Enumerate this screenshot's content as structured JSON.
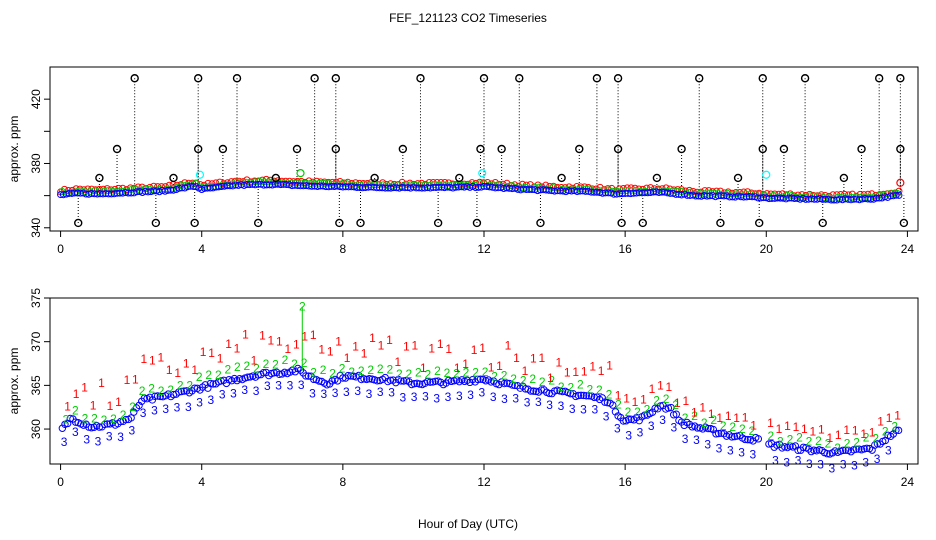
{
  "chart_data": {
    "type": "scatter",
    "title": "FEF_121123  CO2 Timeseries",
    "xlabel": "Hour of Day (UTC)",
    "xlim": [
      -0.3,
      24.3
    ],
    "x_ticks": [
      0,
      4,
      8,
      12,
      16,
      20,
      24
    ],
    "x_tick_labels": [
      "0",
      "4",
      "8",
      "12",
      "16",
      "20",
      "24"
    ],
    "colors": {
      "black": "#000000",
      "red": "#ff0000",
      "green": "#00cd00",
      "blue": "#0000ff",
      "cyan": "#00ffff",
      "frame": "#000000"
    },
    "panels": [
      {
        "name": "top",
        "ylabel": "approx. ppm",
        "ylim": [
          338,
          440
        ],
        "y_ticks": [
          340,
          380,
          420
        ],
        "y_tick_labels": [
          "340",
          "380",
          "420"
        ],
        "y_minor_ticks": [
          360,
          400
        ],
        "base_trend": [
          [
            0.0,
            360.5
          ],
          [
            0.5,
            361.5
          ],
          [
            1.0,
            361
          ],
          [
            2.0,
            362
          ],
          [
            3.0,
            363
          ],
          [
            3.8,
            366
          ],
          [
            4.0,
            364
          ],
          [
            5.0,
            366.5
          ],
          [
            6.0,
            367
          ],
          [
            7.0,
            366
          ],
          [
            8.0,
            365.5
          ],
          [
            9.0,
            365
          ],
          [
            10.0,
            365
          ],
          [
            11.0,
            365
          ],
          [
            12.0,
            365.5
          ],
          [
            13.0,
            364
          ],
          [
            14.0,
            363
          ],
          [
            15.0,
            362.5
          ],
          [
            15.8,
            361
          ],
          [
            16.0,
            361.5
          ],
          [
            17.0,
            362
          ],
          [
            18.0,
            360
          ],
          [
            19.0,
            359.5
          ],
          [
            19.8,
            359
          ],
          [
            20.0,
            358.5
          ],
          [
            21.0,
            358
          ],
          [
            22.0,
            357.5
          ],
          [
            23.0,
            358
          ],
          [
            23.7,
            360
          ]
        ],
        "top_spikes": [
          2.1,
          3.9,
          5.0,
          7.2,
          7.8,
          10.2,
          12.0,
          13.0,
          15.2,
          15.8,
          18.1,
          19.9,
          21.1,
          23.2,
          23.8
        ],
        "mid_spikes": [
          1.6,
          3.9,
          4.6,
          6.7,
          7.8,
          9.7,
          11.9,
          12.5,
          14.7,
          15.8,
          17.6,
          19.9,
          20.5,
          22.7,
          23.8
        ],
        "low_points": [
          0.5,
          2.7,
          3.8,
          5.6,
          7.9,
          8.5,
          10.7,
          11.8,
          13.6,
          15.9,
          16.5,
          18.7,
          19.8,
          21.6,
          23.9
        ],
        "mid_markers": [
          1.1,
          3.2,
          6.1,
          8.9,
          11.3,
          14.2,
          16.9,
          19.2,
          22.2
        ],
        "cyan_points": [
          [
            3.95,
            373
          ],
          [
            11.95,
            374
          ],
          [
            20.0,
            373
          ]
        ],
        "extra_markers": [
          [
            6.8,
            374
          ],
          [
            23.8,
            368
          ]
        ]
      },
      {
        "name": "bottom",
        "ylabel": "approx. ppm",
        "ylim": [
          356,
          375
        ],
        "y_ticks": [
          360,
          365,
          370,
          375
        ],
        "y_tick_labels": [
          "360",
          "365",
          "370",
          "375"
        ],
        "trend": [
          [
            0.0,
            360
          ],
          [
            0.3,
            361.5
          ],
          [
            0.6,
            361
          ],
          [
            0.9,
            360.5
          ],
          [
            1.5,
            360.8
          ],
          [
            2.0,
            361.5
          ],
          [
            2.3,
            363.5
          ],
          [
            3.0,
            364
          ],
          [
            3.5,
            364.5
          ],
          [
            4.0,
            365
          ],
          [
            4.5,
            365.5
          ],
          [
            5.0,
            366
          ],
          [
            5.6,
            366.5
          ],
          [
            6.2,
            366.7
          ],
          [
            6.7,
            367
          ],
          [
            7.2,
            366
          ],
          [
            7.6,
            365.5
          ],
          [
            8.0,
            366.3
          ],
          [
            9.0,
            366
          ],
          [
            10.0,
            365.5
          ],
          [
            11.0,
            365.6
          ],
          [
            12.0,
            366
          ],
          [
            12.5,
            365.5
          ],
          [
            13.0,
            365
          ],
          [
            14.0,
            364.5
          ],
          [
            15.0,
            364
          ],
          [
            15.5,
            363.5
          ],
          [
            15.8,
            362
          ],
          [
            16.0,
            361.2
          ],
          [
            16.5,
            361.5
          ],
          [
            17.0,
            363
          ],
          [
            17.3,
            362.5
          ],
          [
            17.6,
            361
          ],
          [
            18.0,
            360.5
          ],
          [
            19.0,
            359.5
          ],
          [
            19.8,
            359
          ],
          [
            20.0,
            358.5
          ],
          [
            21.0,
            358
          ],
          [
            22.0,
            357.5
          ],
          [
            22.5,
            357.8
          ],
          [
            23.0,
            358
          ],
          [
            23.5,
            359.5
          ],
          [
            23.7,
            360
          ]
        ],
        "gaps": [
          [
            19.8,
            20.0
          ]
        ],
        "spike": {
          "x": 6.85,
          "y": 374
        },
        "symbols": [
          "1",
          "2",
          "3"
        ]
      }
    ]
  }
}
